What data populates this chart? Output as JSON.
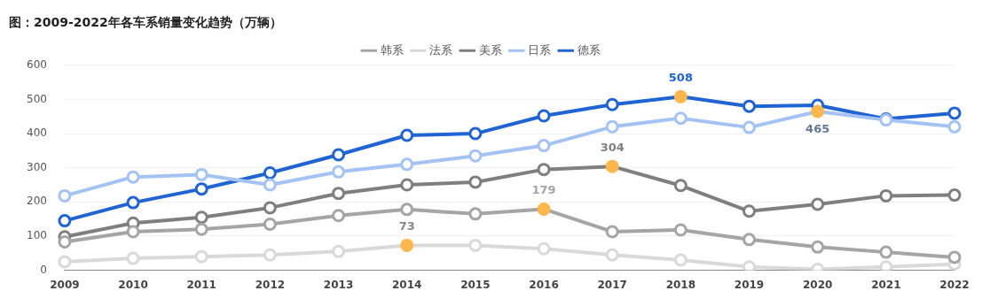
{
  "chart_data": {
    "type": "line",
    "title": "图：2009-2022年各车系销量变化趋势（万辆）",
    "categories": [
      "2009",
      "2010",
      "2011",
      "2012",
      "2013",
      "2014",
      "2015",
      "2016",
      "2017",
      "2018",
      "2019",
      "2020",
      "2021",
      "2022"
    ],
    "ylim": [
      0,
      600
    ],
    "yticks": [
      0,
      100,
      200,
      300,
      400,
      500,
      600
    ],
    "grid": "y",
    "legend": "top",
    "marker": "circle",
    "line_style": "solid",
    "series": [
      {
        "name": "韩系",
        "color": "#a5a5a5",
        "values": [
          83,
          113,
          120,
          135,
          160,
          178,
          165,
          179,
          113,
          118,
          90,
          68,
          53,
          38
        ],
        "colors": [
          "#a5a5a5",
          "#a5a5a5",
          "#a5a5a5",
          "#a5a5a5",
          "#a5a5a5",
          "#a5a5a5",
          "#a5a5a5",
          "#ffb74d",
          "#a5a5a5",
          "#a5a5a5",
          "#a5a5a5",
          "#a5a5a5",
          "#a5a5a5",
          "#a5a5a5"
        ],
        "value_labels": [
          null,
          null,
          null,
          null,
          null,
          null,
          null,
          "179",
          null,
          null,
          null,
          null,
          null,
          null
        ]
      },
      {
        "name": "法系",
        "color": "#d9d9d9",
        "values": [
          25,
          35,
          40,
          45,
          55,
          73,
          73,
          63,
          45,
          30,
          10,
          3,
          10,
          18
        ],
        "colors": [
          "#d9d9d9",
          "#d9d9d9",
          "#d9d9d9",
          "#d9d9d9",
          "#d9d9d9",
          "#ffb74d",
          "#d9d9d9",
          "#d9d9d9",
          "#d9d9d9",
          "#d9d9d9",
          "#d9d9d9",
          "#d9d9d9",
          "#d9d9d9",
          "#d9d9d9"
        ],
        "value_labels": [
          null,
          null,
          null,
          null,
          null,
          "73",
          null,
          null,
          null,
          null,
          null,
          null,
          null,
          null
        ]
      },
      {
        "name": "美系",
        "color": "#7f7f7f",
        "values": [
          98,
          138,
          155,
          183,
          225,
          250,
          258,
          295,
          304,
          248,
          173,
          193,
          218,
          220
        ],
        "colors": [
          "#7f7f7f",
          "#7f7f7f",
          "#7f7f7f",
          "#7f7f7f",
          "#7f7f7f",
          "#7f7f7f",
          "#7f7f7f",
          "#7f7f7f",
          "#ffb74d",
          "#7f7f7f",
          "#7f7f7f",
          "#7f7f7f",
          "#7f7f7f",
          "#7f7f7f"
        ],
        "value_labels": [
          null,
          null,
          null,
          null,
          null,
          null,
          null,
          null,
          "304",
          null,
          null,
          null,
          null,
          null
        ]
      },
      {
        "name": "日系",
        "color": "#a4c2f4",
        "values": [
          218,
          273,
          280,
          250,
          288,
          310,
          335,
          365,
          420,
          445,
          418,
          465,
          440,
          420
        ],
        "colors": [
          "#a4c2f4",
          "#a4c2f4",
          "#a4c2f4",
          "#a4c2f4",
          "#a4c2f4",
          "#a4c2f4",
          "#a4c2f4",
          "#a4c2f4",
          "#a4c2f4",
          "#a4c2f4",
          "#a4c2f4",
          "#ffb74d",
          "#a4c2f4",
          "#a4c2f4"
        ],
        "value_labels": [
          null,
          null,
          null,
          null,
          null,
          null,
          null,
          null,
          null,
          null,
          null,
          "465",
          null,
          null
        ]
      },
      {
        "name": "德系",
        "color": "#1f64d2",
        "values": [
          145,
          198,
          238,
          285,
          338,
          395,
          400,
          452,
          485,
          508,
          480,
          483,
          443,
          460
        ],
        "colors": [
          "#1f64d2",
          "#1f64d2",
          "#1f64d2",
          "#1f64d2",
          "#1f64d2",
          "#1f64d2",
          "#1f64d2",
          "#1f64d2",
          "#1f64d2",
          "#ffb74d",
          "#1f64d2",
          "#1f64d2",
          "#1f64d2",
          "#1f64d2"
        ],
        "value_labels": [
          null,
          null,
          null,
          null,
          null,
          null,
          null,
          null,
          null,
          "508",
          null,
          null,
          null,
          null
        ]
      }
    ]
  }
}
